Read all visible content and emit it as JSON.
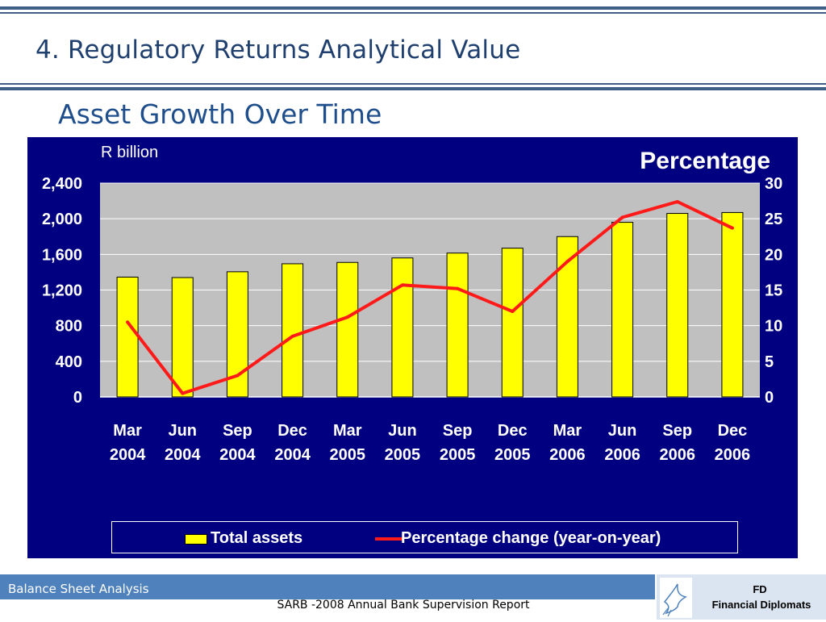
{
  "slide": {
    "title": "4. Regulatory Returns Analytical Value",
    "heading": "Asset Growth Over Time"
  },
  "chart_data": {
    "type": "bar+line",
    "left_axis_unit": "R billion",
    "right_axis_title": "Percentage",
    "categories": [
      [
        "Mar",
        "2004"
      ],
      [
        "Jun",
        "2004"
      ],
      [
        "Sep",
        "2004"
      ],
      [
        "Dec",
        "2004"
      ],
      [
        "Mar",
        "2005"
      ],
      [
        "Jun",
        "2005"
      ],
      [
        "Sep",
        "2005"
      ],
      [
        "Dec",
        "2005"
      ],
      [
        "Mar",
        "2006"
      ],
      [
        "Jun",
        "2006"
      ],
      [
        "Sep",
        "2006"
      ],
      [
        "Dec",
        "2006"
      ]
    ],
    "series": [
      {
        "name": "Total assets",
        "kind": "bar",
        "axis": "left",
        "color": "#ffff00",
        "values": [
          1345,
          1340,
          1405,
          1495,
          1510,
          1560,
          1615,
          1670,
          1800,
          1960,
          2060,
          2070
        ]
      },
      {
        "name": "Percentage change (year-on-year)",
        "kind": "line",
        "axis": "right",
        "color": "#ff1a1a",
        "values": [
          10.5,
          0.5,
          3.0,
          8.5,
          11.2,
          15.7,
          15.2,
          12.0,
          19.0,
          25.2,
          27.4,
          23.7
        ]
      }
    ],
    "ylim_left": [
      0,
      2400
    ],
    "yticks_left": [
      0,
      400,
      800,
      1200,
      1600,
      2000,
      2400
    ],
    "ytick_labels_left": [
      "0",
      "400",
      "800",
      "1,200",
      "1,600",
      "2,000",
      "2,400"
    ],
    "ylim_right": [
      0,
      30
    ],
    "yticks_right": [
      0,
      5,
      10,
      15,
      20,
      25,
      30
    ],
    "grid": true,
    "legend_position": "bottom",
    "colors": {
      "panel": "#000080",
      "plot": "#c0c0c0"
    }
  },
  "footer": {
    "left": "Balance Sheet Analysis",
    "center": "SARB -2008 Annual Bank Supervision Report",
    "logo_abbr": "FD",
    "logo_name": "Financial Diplomats"
  },
  "icons": {
    "logo": "dove-icon"
  }
}
